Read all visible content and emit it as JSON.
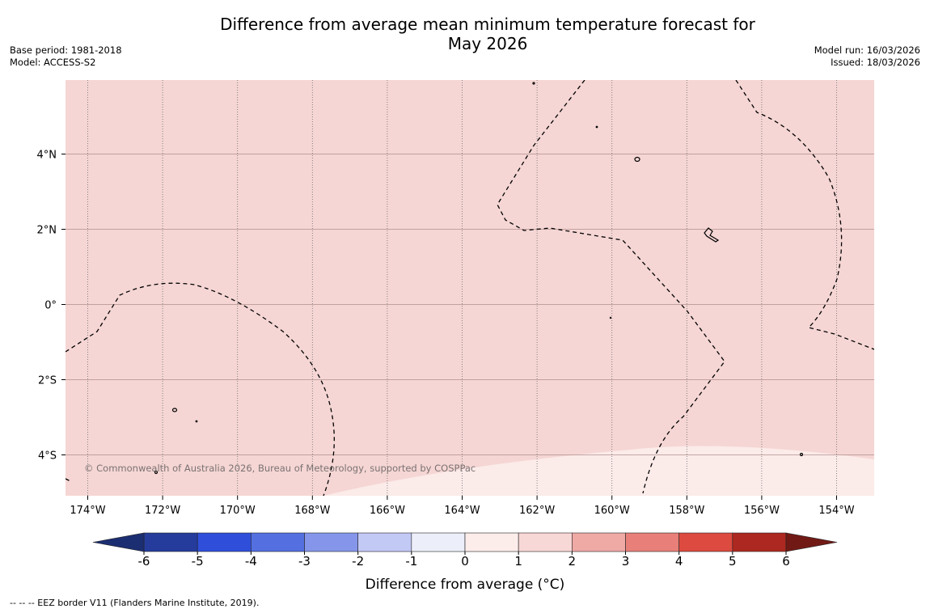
{
  "title_line1": "Difference from average mean minimum temperature forecast for",
  "title_line2": "May 2026",
  "base_period": "Base period: 1981-2018",
  "model": "Model: ACCESS-S2",
  "model_run": "Model run: 16/03/2026",
  "issued": "Issued: 18/03/2026",
  "copyright": "© Commonwealth of Australia 2026, Bureau of Meteorology, supported by COSPPac",
  "longitude_labels": [
    "174°W",
    "172°W",
    "170°W",
    "168°W",
    "166°W",
    "164°W",
    "162°W",
    "160°W",
    "158°W",
    "156°W",
    "154°W"
  ],
  "latitude_labels": [
    "4°N",
    "2°N",
    "0°",
    "2°S",
    "4°S"
  ],
  "map_fill_colors": {
    "one_to_two": "#f5d6d4",
    "zero_to_one": "#fbebe9"
  },
  "colorbar": {
    "label": "Difference from average (°C)",
    "ticks": [
      "-6",
      "-5",
      "-4",
      "-3",
      "-2",
      "-1",
      "0",
      "1",
      "2",
      "3",
      "4",
      "5",
      "6"
    ],
    "colors": [
      "#253c9c",
      "#2f4fdb",
      "#5470e0",
      "#8596ea",
      "#c3c9f5",
      "#eceef9",
      "#fcecea",
      "#f8d8d6",
      "#efaaa6",
      "#e88079",
      "#dc4a40",
      "#ad2820"
    ],
    "under_color": "#1c2e72",
    "over_color": "#711a15"
  },
  "footnote": "--  --  -- EEZ border V11 (Flanders Marine Institute, 2019)."
}
